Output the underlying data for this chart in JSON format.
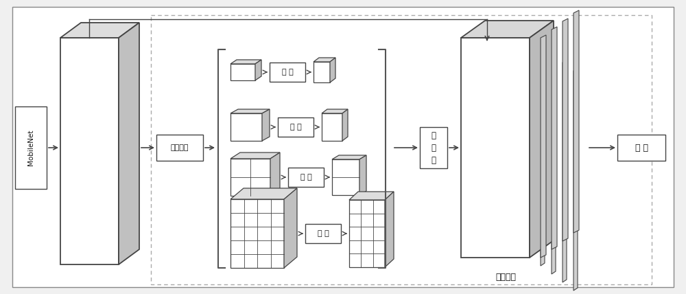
{
  "bg_color": "#f0f0f0",
  "face_color": "#ffffff",
  "top_color": "#e0e0e0",
  "right_color": "#c8c8c8",
  "edge_color": "#444444",
  "text_color": "#111111",
  "dash_color": "#aaaaaa",
  "fig_w": 10.0,
  "fig_h": 4.28,
  "dpi": 100,
  "labels": {
    "mobilenet": "MobileNet",
    "avg_pool": "平均池化",
    "conv": "卷 积",
    "conv_final": "卷 积",
    "upsample_lines": [
      "上",
      "采",
      "样"
    ],
    "feature_fusion": "特征融合"
  }
}
